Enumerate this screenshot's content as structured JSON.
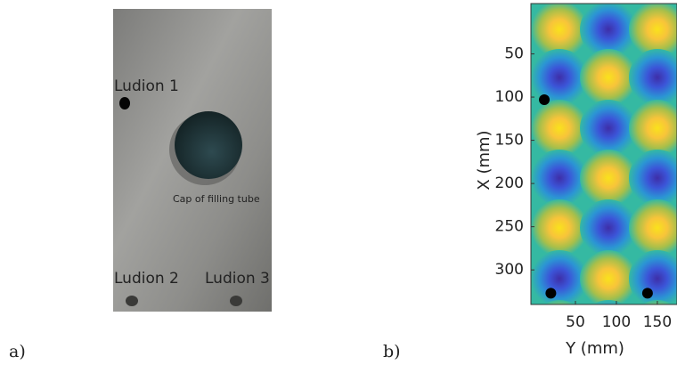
{
  "panel_a": {
    "label": "a)",
    "ludion_1": "Ludion 1",
    "cap": "Cap of filling tube",
    "ludion_2": "Ludion 2",
    "ludion_3": "Ludion 3"
  },
  "panel_b": {
    "label": "b)",
    "x_label": "Y (mm)",
    "y_label": "X (mm)",
    "xlim": [
      0,
      174
    ],
    "ylim": [
      0,
      340
    ],
    "y_reversed": true,
    "xticks": [
      50,
      100,
      150
    ],
    "yticks": [
      50,
      100,
      150,
      200,
      250,
      300
    ],
    "points": {
      "x": [
        12,
        20,
        138
      ],
      "y": [
        103,
        327,
        327
      ],
      "color": "#000000"
    }
  }
}
